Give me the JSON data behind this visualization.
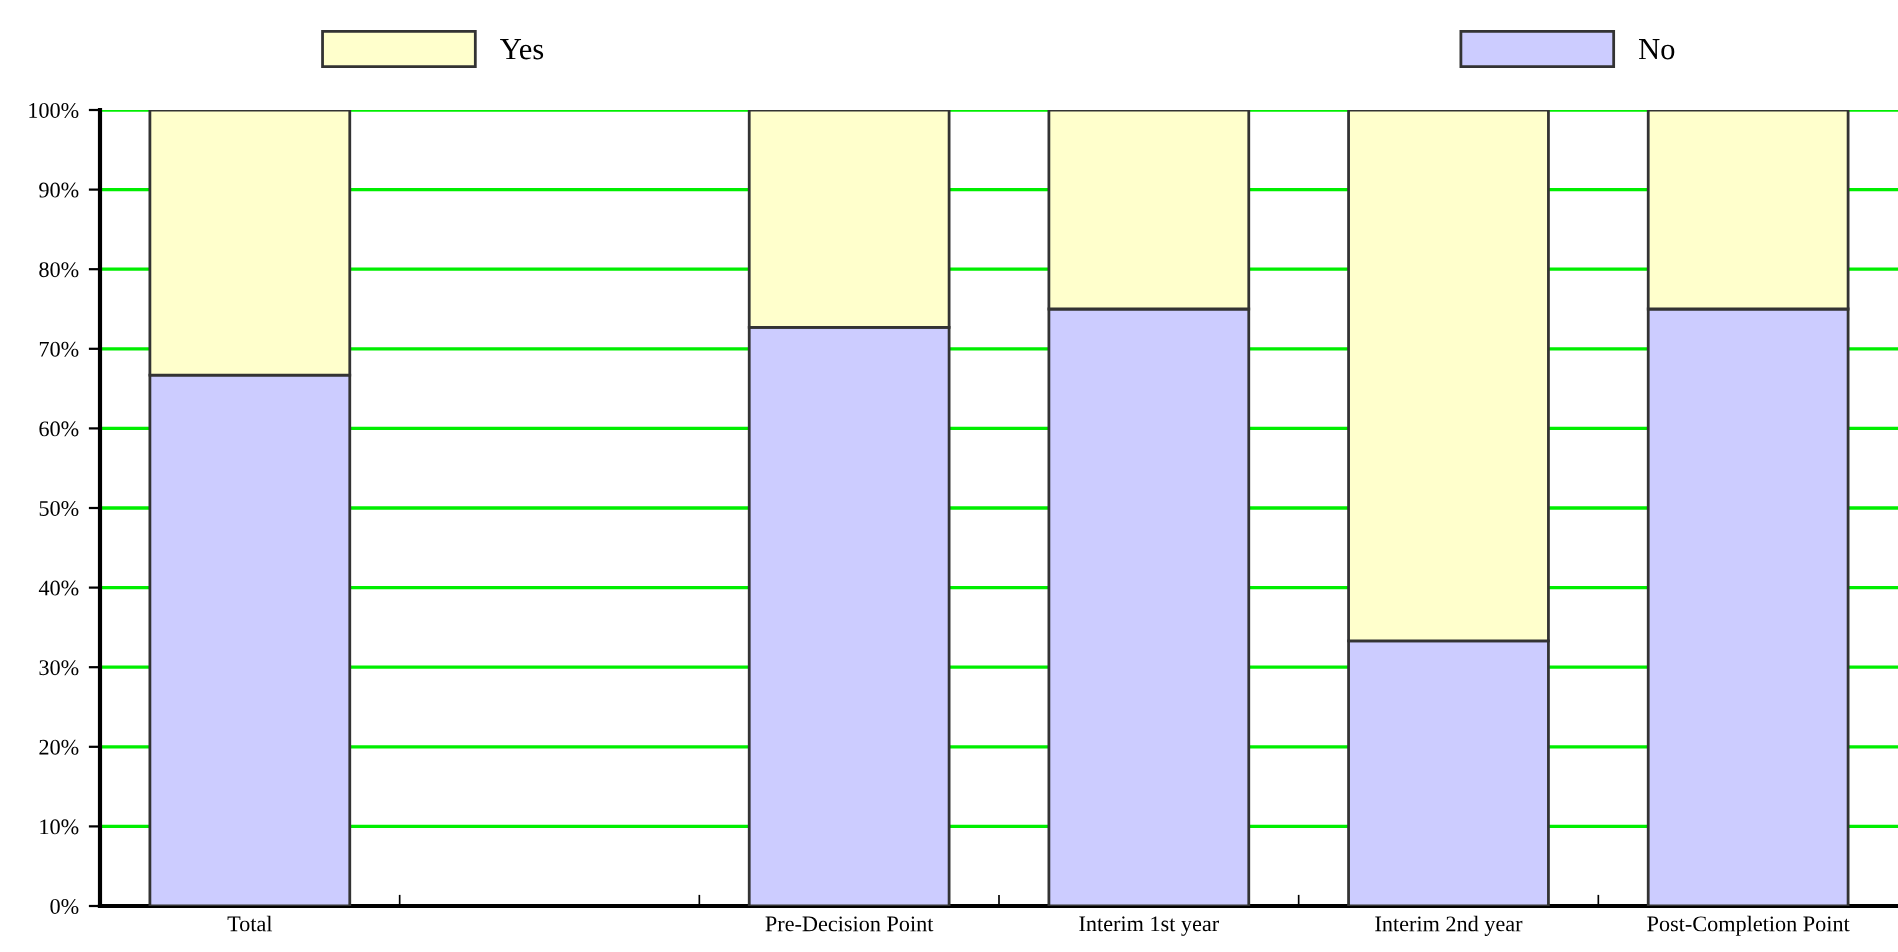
{
  "chart_data": {
    "type": "bar",
    "stacked": true,
    "categories": [
      "Total",
      null,
      "Pre-Decision Point",
      "Interim 1st year",
      "Interim 2nd year",
      "Post-Completion Point"
    ],
    "series": [
      {
        "name": "No",
        "color": "#ccccff",
        "values": [
          66.7,
          null,
          72.7,
          75,
          33.3,
          75
        ]
      },
      {
        "name": "Yes",
        "color": "#ffffcc",
        "values": [
          33.3,
          null,
          27.3,
          25,
          66.7,
          25
        ]
      }
    ],
    "ylim": [
      0,
      100
    ],
    "yticks": [
      {
        "value": 0,
        "label": "0%"
      },
      {
        "value": 10,
        "label": "10%"
      },
      {
        "value": 20,
        "label": "20%"
      },
      {
        "value": 30,
        "label": "30%"
      },
      {
        "value": 40,
        "label": "40%"
      },
      {
        "value": 50,
        "label": "50%"
      },
      {
        "value": 60,
        "label": "60%"
      },
      {
        "value": 70,
        "label": "70%"
      },
      {
        "value": 80,
        "label": "80%"
      },
      {
        "value": 90,
        "label": "90%"
      },
      {
        "value": 100,
        "label": "100%"
      }
    ],
    "grid": "y",
    "legend": "top"
  }
}
